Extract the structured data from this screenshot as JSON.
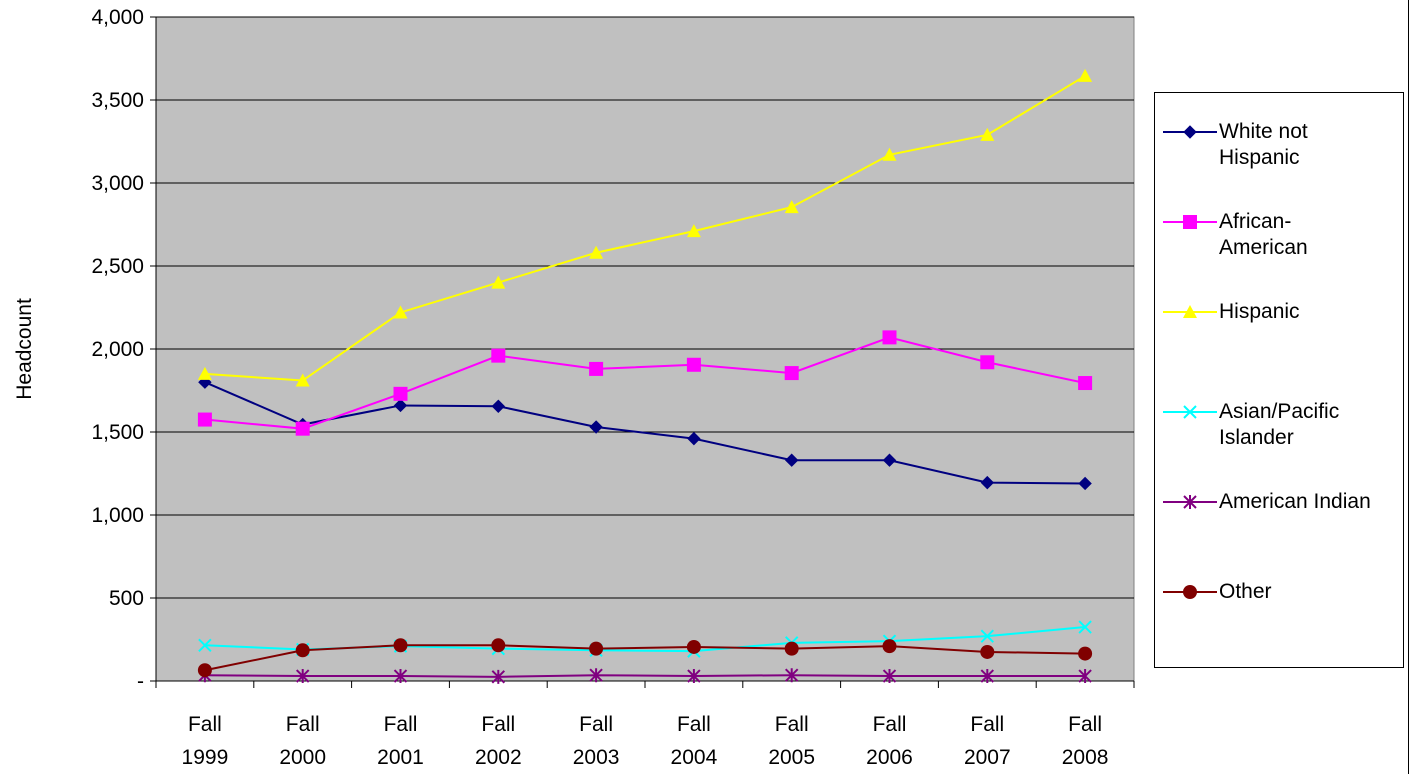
{
  "chart_data": {
    "type": "line",
    "title": "",
    "xlabel": "",
    "ylabel": "Headcount",
    "ylim": [
      0,
      4000
    ],
    "yticks": [
      0,
      500,
      1000,
      1500,
      2000,
      2500,
      3000,
      3500,
      4000
    ],
    "ytick_labels": [
      "-",
      "500",
      "1,000",
      "1,500",
      "2,000",
      "2,500",
      "3,000",
      "3,500",
      "4,000"
    ],
    "grid": true,
    "legend_position": "right",
    "categories": [
      [
        "Fall",
        "1999"
      ],
      [
        "Fall",
        "2000"
      ],
      [
        "Fall",
        "2001"
      ],
      [
        "Fall",
        "2002"
      ],
      [
        "Fall",
        "2003"
      ],
      [
        "Fall",
        "2004"
      ],
      [
        "Fall",
        "2005"
      ],
      [
        "Fall",
        "2006"
      ],
      [
        "Fall",
        "2007"
      ],
      [
        "Fall",
        "2008"
      ]
    ],
    "plot_background": "#c0c0c0",
    "series": [
      {
        "name": "White not Hispanic",
        "label_lines": [
          "White not",
          "Hispanic"
        ],
        "color": "#000080",
        "marker": "diamond",
        "values": [
          1800,
          1545,
          1660,
          1655,
          1530,
          1460,
          1330,
          1330,
          1195,
          1190
        ]
      },
      {
        "name": "African-American",
        "label_lines": [
          "African-",
          "American"
        ],
        "color": "#ff00ff",
        "marker": "square",
        "values": [
          1575,
          1520,
          1730,
          1960,
          1880,
          1905,
          1855,
          2070,
          1920,
          1795
        ]
      },
      {
        "name": "Hispanic",
        "label_lines": [
          "Hispanic"
        ],
        "color": "#ffff00",
        "marker": "triangle",
        "values": [
          1850,
          1810,
          2220,
          2400,
          2580,
          2710,
          2855,
          3170,
          3290,
          3645
        ]
      },
      {
        "name": "Asian/Pacific Islander",
        "label_lines": [
          "Asian/Pacific",
          "Islander"
        ],
        "color": "#00ffff",
        "marker": "x",
        "values": [
          215,
          190,
          210,
          195,
          185,
          180,
          230,
          240,
          270,
          325
        ]
      },
      {
        "name": "American Indian",
        "label_lines": [
          "American Indian"
        ],
        "color": "#800080",
        "marker": "star",
        "values": [
          35,
          30,
          30,
          25,
          35,
          30,
          35,
          30,
          30,
          30
        ]
      },
      {
        "name": "Other",
        "label_lines": [
          "Other"
        ],
        "color": "#800000",
        "marker": "circle",
        "values": [
          65,
          185,
          215,
          215,
          195,
          205,
          195,
          210,
          175,
          165
        ]
      }
    ]
  }
}
